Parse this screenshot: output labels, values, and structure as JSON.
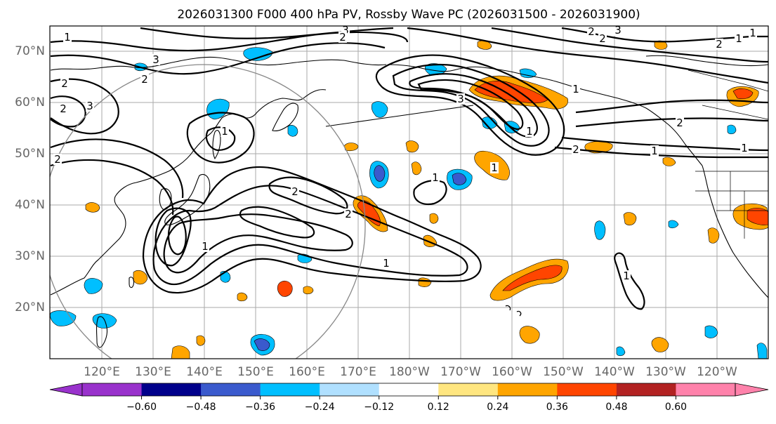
{
  "title": "2026031300 F000 400 hPa PV, Rossby Wave PC (2026031500 - 2026031900)",
  "lat_labels": [
    "70°N",
    "60°N",
    "50°N",
    "40°N",
    "30°N",
    "20°N"
  ],
  "lon_labels": [
    "120°E",
    "130°E",
    "140°E",
    "150°E",
    "160°E",
    "170°E",
    "180°W",
    "170°W",
    "160°W",
    "150°W",
    "140°W",
    "130°W",
    "120°W"
  ],
  "colorbar": {
    "colors": [
      "#9932cc",
      "#00008b",
      "#3a5acd",
      "#00bfff",
      "#b0e0ff",
      "#ffffff",
      "#ffe680",
      "#ffa500",
      "#ff4500",
      "#b22222",
      "#ff82ab"
    ],
    "tick_labels": [
      "−0.60",
      "−0.48",
      "−0.36",
      "−0.24",
      "−0.12",
      "0.12",
      "0.24",
      "0.36",
      "0.48",
      "0.60"
    ]
  },
  "contour_labels": [
    "3",
    "2",
    "3",
    "2",
    "2",
    "3",
    "2",
    "1",
    "2",
    "1",
    "3",
    "2",
    "3",
    "1",
    "1",
    "2",
    "1",
    "1",
    "2",
    "1",
    "2",
    "1",
    "2",
    "1",
    "1",
    "1",
    "1",
    "2",
    "2",
    "1"
  ],
  "palette": {
    "land_line": "#000000",
    "grid": "#999999",
    "contour": "#000000",
    "circle": "#888888"
  }
}
